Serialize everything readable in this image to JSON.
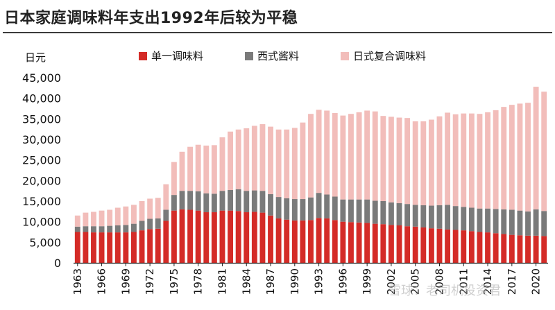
{
  "header": {
    "title": "日本家庭调味料年支出1992年后较为平稳"
  },
  "watermark": "雪球：老司机投资君",
  "chart_data": {
    "type": "bar",
    "stacked": true,
    "unit_label": "日元",
    "ylim": [
      0,
      45000
    ],
    "y_ticks": [
      "0",
      "5,000",
      "10,000",
      "15,000",
      "20,000",
      "25,000",
      "30,000",
      "35,000",
      "40,000",
      "45,000"
    ],
    "x_tick_labels": [
      "1963",
      "1966",
      "1969",
      "1972",
      "1975",
      "1978",
      "1981",
      "1984",
      "1987",
      "1990",
      "1993",
      "1996",
      "1999",
      "2002",
      "2005",
      "2008",
      "2011",
      "2014",
      "2017",
      "2020"
    ],
    "categories": [
      "1963",
      "1964",
      "1965",
      "1966",
      "1967",
      "1968",
      "1969",
      "1970",
      "1971",
      "1972",
      "1973",
      "1974",
      "1975",
      "1976",
      "1977",
      "1978",
      "1979",
      "1980",
      "1981",
      "1982",
      "1983",
      "1984",
      "1985",
      "1986",
      "1987",
      "1988",
      "1989",
      "1990",
      "1991",
      "1992",
      "1993",
      "1994",
      "1995",
      "1996",
      "1997",
      "1998",
      "1999",
      "2000",
      "2001",
      "2002",
      "2003",
      "2004",
      "2005",
      "2006",
      "2007",
      "2008",
      "2009",
      "2010",
      "2011",
      "2012",
      "2013",
      "2014",
      "2015",
      "2016",
      "2017",
      "2018",
      "2019",
      "2020",
      "2021"
    ],
    "legend_position": "top",
    "series": [
      {
        "name": "单一调味料",
        "color": "#d42b27",
        "values": [
          7500,
          7500,
          7400,
          7400,
          7400,
          7400,
          7400,
          7500,
          7900,
          8200,
          8300,
          10200,
          12700,
          13000,
          12900,
          12700,
          12300,
          12300,
          12700,
          12700,
          12600,
          12300,
          12400,
          12200,
          11500,
          10800,
          10500,
          10300,
          10300,
          10400,
          10900,
          10800,
          10400,
          10000,
          9900,
          9800,
          9700,
          9500,
          9400,
          9200,
          9100,
          8900,
          8800,
          8600,
          8400,
          8300,
          8100,
          8000,
          7900,
          7700,
          7500,
          7400,
          7200,
          7000,
          6800,
          6700,
          6600,
          6600,
          6500
        ]
      },
      {
        "name": "西式酱料",
        "color": "#7a7a7a",
        "values": [
          1300,
          1400,
          1500,
          1500,
          1600,
          1700,
          1800,
          2000,
          2300,
          2500,
          2500,
          2700,
          3800,
          4500,
          4600,
          4700,
          4600,
          4500,
          4800,
          5000,
          5300,
          5200,
          5200,
          5300,
          5200,
          5200,
          5200,
          5200,
          5200,
          5500,
          6100,
          5800,
          5700,
          5400,
          5500,
          5600,
          5700,
          5600,
          5600,
          5500,
          5400,
          5400,
          5300,
          5400,
          5500,
          5700,
          6000,
          5800,
          5700,
          5700,
          5700,
          5800,
          5900,
          6000,
          6100,
          6000,
          5900,
          6400,
          6100
        ]
      },
      {
        "name": "日式复合调味料",
        "color": "#f2bdba",
        "values": [
          2700,
          3300,
          3500,
          3800,
          3900,
          4300,
          4500,
          4600,
          4800,
          4900,
          5000,
          6200,
          8000,
          9500,
          10700,
          11300,
          11600,
          11800,
          13000,
          14200,
          14500,
          15200,
          15700,
          16200,
          16400,
          16400,
          16700,
          17300,
          18600,
          20300,
          20200,
          20400,
          20300,
          20400,
          20800,
          21200,
          21600,
          21700,
          20700,
          20800,
          20800,
          20900,
          20300,
          20400,
          20900,
          21600,
          22400,
          22300,
          22700,
          22900,
          23000,
          23400,
          24000,
          24900,
          25500,
          26000,
          26400,
          29800,
          29000
        ]
      }
    ]
  }
}
